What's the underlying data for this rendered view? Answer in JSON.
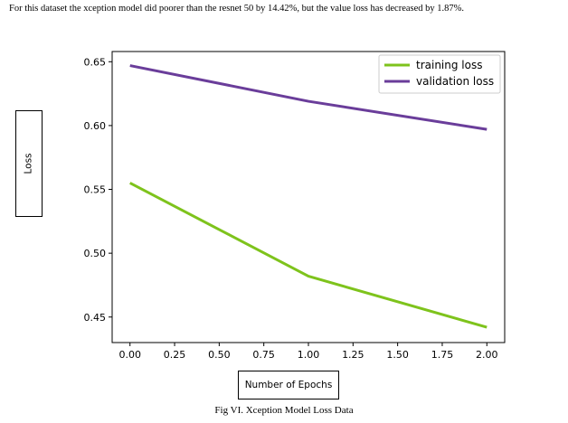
{
  "header": {
    "caption": "For this dataset the xception model did poorer than the resnet 50 by 14.42%, but the value loss has decreased by 1.87%."
  },
  "figure": {
    "caption": "Fig VI. Xception Model Loss Data"
  },
  "chart_data": {
    "type": "line",
    "xlabel": "Number of Epochs",
    "ylabel": "Loss",
    "x": [
      0,
      1,
      2
    ],
    "xlim": [
      -0.1,
      2.1
    ],
    "ylim": [
      0.43,
      0.658
    ],
    "xticks": [
      "0.00",
      "0.25",
      "0.50",
      "0.75",
      "1.00",
      "1.25",
      "1.50",
      "1.75",
      "2.00"
    ],
    "yticks": [
      "0.45",
      "0.50",
      "0.55",
      "0.60",
      "0.65"
    ],
    "grid": false,
    "legend_position": "top-right",
    "series": [
      {
        "name": "training loss",
        "color": "#7ec31c",
        "values": [
          0.555,
          0.482,
          0.442
        ]
      },
      {
        "name": "validation loss",
        "color": "#6a3d9a",
        "values": [
          0.647,
          0.619,
          0.597
        ]
      }
    ]
  }
}
